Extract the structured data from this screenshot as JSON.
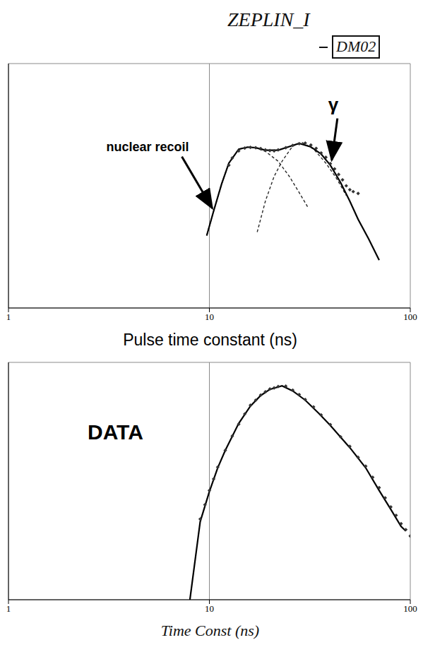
{
  "header": {
    "title": "ZEPLIN_I",
    "tag": "DM02"
  },
  "chart_data": [
    {
      "type": "line",
      "log": true,
      "grid": true,
      "tick_labels": "x",
      "x_label": "Pulse time constant (ns)",
      "xlim": [
        1,
        100
      ],
      "xticks": [
        1,
        10,
        100
      ],
      "ylim": [
        1,
        1000000
      ],
      "yticks": [
        1,
        10,
        100,
        1000,
        10000,
        100000,
        1000000
      ],
      "series": [
        {
          "type": "line",
          "color": "#2a2a2a",
          "line_style": "dashed",
          "x": [
            9.7,
            10.5,
            11.5,
            12.5,
            14,
            15.5,
            17,
            19,
            22,
            25,
            28,
            31
          ],
          "values": [
            60,
            240,
            1100,
            3600,
            7900,
            8900,
            8500,
            7000,
            4000,
            1700,
            680,
            290
          ]
        },
        {
          "type": "line",
          "color": "#2a2a2a",
          "line_style": "dashed",
          "x": [
            17.3,
            19,
            21,
            23,
            26,
            29,
            33,
            38,
            43,
            48
          ],
          "values": [
            73,
            420,
            1700,
            4000,
            9500,
            11500,
            8000,
            3600,
            1500,
            580
          ]
        },
        {
          "type": "line",
          "color": "#000000",
          "line_style": "solid",
          "x": [
            9.7,
            10.5,
            11.5,
            12.5,
            14,
            15.5,
            17,
            19,
            22,
            25,
            28,
            32,
            36,
            40,
            45,
            50,
            55,
            62,
            70
          ],
          "values": [
            60,
            240,
            1100,
            3600,
            7900,
            8900,
            8600,
            7500,
            7500,
            9200,
            11000,
            9000,
            6000,
            3200,
            1200,
            420,
            150,
            50,
            15
          ]
        },
        {
          "type": "scatter",
          "color": "#333333",
          "marker": "diamond",
          "x": [
            12.5,
            13,
            14,
            15,
            16,
            17,
            18,
            19,
            20,
            21,
            22,
            24,
            26,
            28,
            30,
            32,
            34,
            36,
            38,
            40,
            42,
            44,
            46,
            48,
            50,
            52,
            55
          ],
          "values": [
            3200,
            4800,
            7200,
            8400,
            8800,
            8600,
            8200,
            7600,
            7300,
            7200,
            7600,
            8600,
            9800,
            10800,
            11200,
            10000,
            8300,
            6400,
            5000,
            3500,
            2600,
            1900,
            1400,
            1000,
            800,
            720,
            650
          ]
        }
      ],
      "annotations": [
        {
          "text": "nuclear recoil",
          "x": 10.5,
          "y": 250
        },
        {
          "text": "γ",
          "x": 40,
          "y": 3500
        }
      ]
    },
    {
      "type": "line",
      "log": true,
      "grid": true,
      "tick_labels": "x",
      "x_label": "Time Const (ns)",
      "xlim": [
        1,
        100
      ],
      "xticks": [
        1,
        10,
        100
      ],
      "ylim": [
        1,
        100000
      ],
      "yticks": [
        1,
        10,
        100,
        1000,
        10000,
        100000
      ],
      "series": [
        {
          "type": "line",
          "color": "#000000",
          "line_style": "solid",
          "x": [
            8,
            9,
            10,
            11,
            12,
            14,
            16,
            18,
            20,
            23,
            26,
            30,
            35,
            40,
            50,
            60,
            70,
            80,
            90,
            95
          ],
          "values": [
            1,
            44,
            190,
            600,
            1400,
            5200,
            12000,
            20000,
            27000,
            32000,
            25000,
            16000,
            8500,
            4700,
            1600,
            600,
            200,
            80,
            35,
            28
          ]
        },
        {
          "type": "scatter",
          "color": "#333333",
          "marker": "diamond",
          "x": [
            9,
            9.5,
            10,
            10.5,
            11,
            12,
            13,
            14,
            15,
            16,
            17,
            18,
            19,
            20,
            21,
            22,
            24,
            26,
            28,
            30,
            33,
            36,
            40,
            45,
            50,
            55,
            60,
            65,
            70,
            75,
            80,
            85,
            90,
            95,
            100
          ],
          "values": [
            50,
            100,
            200,
            350,
            620,
            1400,
            2800,
            5000,
            8200,
            12500,
            16000,
            20500,
            24000,
            27500,
            29000,
            31000,
            31500,
            26000,
            21000,
            16500,
            11500,
            7800,
            4900,
            2700,
            1700,
            1000,
            650,
            380,
            230,
            140,
            90,
            60,
            40,
            30,
            22
          ]
        }
      ],
      "annotations": [
        {
          "text": "DATA"
        }
      ]
    }
  ]
}
